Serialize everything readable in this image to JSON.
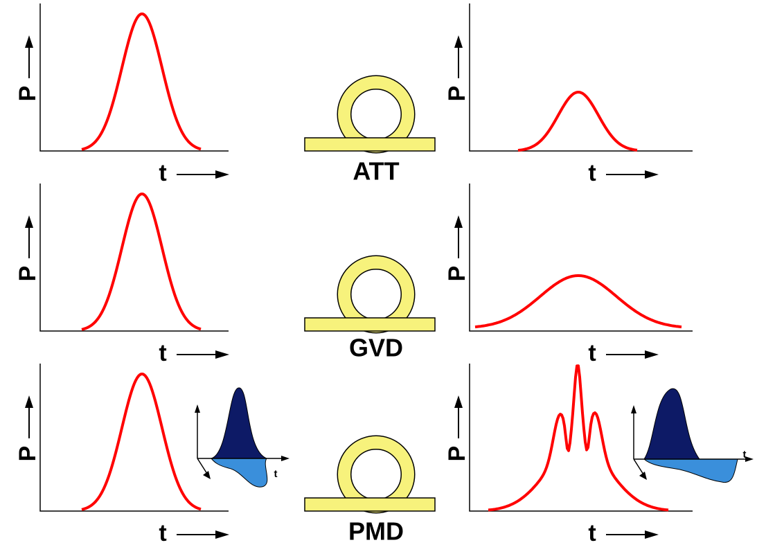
{
  "rows": [
    {
      "label": "ATT",
      "input": {
        "y_axis": "P",
        "x_axis": "t"
      },
      "output": {
        "y_axis": "P",
        "x_axis": "t"
      }
    },
    {
      "label": "GVD",
      "input": {
        "y_axis": "P",
        "x_axis": "t"
      },
      "output": {
        "y_axis": "P",
        "x_axis": "t"
      }
    },
    {
      "label": "PMD",
      "input": {
        "y_axis": "P",
        "x_axis": "t",
        "inset": {
          "x_axis": "t"
        }
      },
      "output": {
        "y_axis": "P",
        "x_axis": "t",
        "inset": {
          "x_axis": "t"
        }
      }
    }
  ]
}
